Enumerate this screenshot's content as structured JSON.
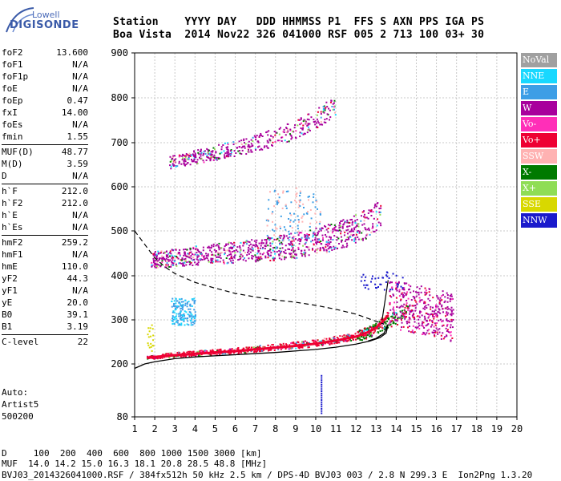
{
  "logo": {
    "line1": "Lowell",
    "line2": "DIGISONDE"
  },
  "header": {
    "line1": "Station    YYYY DAY   DDD HHMMSS P1  FFS S AXN PPS IGA PS",
    "line2": "Boa Vista  2014 Nov22 326 041000 RSF 005 2 713 100 03+ 30"
  },
  "params": {
    "groups": [
      [
        [
          "foF2",
          "13.600"
        ],
        [
          "foF1",
          "N/A"
        ],
        [
          "foF1p",
          "N/A"
        ],
        [
          "foE",
          "N/A"
        ],
        [
          "foEp",
          "0.47"
        ],
        [
          "fxI",
          "14.00"
        ],
        [
          "foEs",
          "N/A"
        ],
        [
          "fmin",
          "1.55"
        ]
      ],
      [
        [
          "MUF(D)",
          "48.77"
        ],
        [
          "M(D)",
          "3.59"
        ],
        [
          "D",
          "N/A"
        ]
      ],
      [
        [
          "h`F",
          "212.0"
        ],
        [
          "h`F2",
          "212.0"
        ],
        [
          "h`E",
          "N/A"
        ],
        [
          "h`Es",
          "N/A"
        ]
      ],
      [
        [
          "hmF2",
          "259.2"
        ],
        [
          "hmF1",
          "N/A"
        ],
        [
          "hmE",
          "110.0"
        ],
        [
          "yF2",
          "44.3"
        ],
        [
          "yF1",
          "N/A"
        ],
        [
          "yE",
          "20.0"
        ],
        [
          "B0",
          "39.1"
        ],
        [
          "B1",
          "3.19"
        ]
      ],
      [
        [
          "C-level",
          "22"
        ]
      ]
    ]
  },
  "auto": {
    "line1": "Auto:",
    "line2": "Artist5",
    "line3": "500200"
  },
  "legend": [
    {
      "label": "NoVal",
      "color": "#a0a0a0"
    },
    {
      "label": "NNE",
      "color": "#19d8ff"
    },
    {
      "label": "E",
      "color": "#3d9ee6"
    },
    {
      "label": "W",
      "color": "#a8009c"
    },
    {
      "label": "Vo-",
      "color": "#ff2fb8"
    },
    {
      "label": "Vo+",
      "color": "#ee0033"
    },
    {
      "label": "SSW",
      "color": "#ffb2b2"
    },
    {
      "label": "X-",
      "color": "#007a00"
    },
    {
      "label": "X+",
      "color": "#8fdd55"
    },
    {
      "label": "SSE",
      "color": "#d8d800"
    },
    {
      "label": "NNW",
      "color": "#1a1acc"
    }
  ],
  "bottom": {
    "line1": "D     100  200  400  600  800 1000 1500 3000 [km]",
    "line2": "MUF  14.0 14.2 15.0 16.3 18.1 20.8 28.5 48.8 [MHz]",
    "line3": "BVJ03_2014326041000.RSF / 384fx512h 50 kHz 2.5 km / DPS-4D BVJ03 003 / 2.8 N 299.3 E  Ion2Png 1.3.20"
  },
  "chart_data": {
    "type": "scatter",
    "xlabel": "",
    "ylabel": "",
    "xlim": [
      1,
      20
    ],
    "ylim": [
      80,
      900
    ],
    "x_ticks": [
      1,
      2,
      3,
      4,
      5,
      6,
      7,
      8,
      9,
      10,
      11,
      12,
      13,
      14,
      15,
      16,
      17,
      18,
      19,
      20
    ],
    "y_ticks": [
      80,
      200,
      300,
      400,
      500,
      600,
      700,
      800,
      900
    ],
    "grid": true,
    "traces": [
      {
        "name": "F2 O-trace",
        "color": "#ee0033",
        "x": [
          1.6,
          2,
          3,
          4,
          5,
          6,
          7,
          8,
          9,
          10,
          11,
          12,
          12.5,
          13,
          13.3,
          13.6
        ],
        "y": [
          214,
          216,
          220,
          223,
          226,
          229,
          233,
          237,
          241,
          246,
          253,
          262,
          270,
          282,
          295,
          310
        ]
      },
      {
        "name": "F2 X-trace",
        "color": "#007a00",
        "x": [
          12,
          12.5,
          13,
          13.5,
          14,
          14.3,
          14.6
        ],
        "y": [
          258,
          266,
          276,
          290,
          303,
          312,
          318
        ]
      },
      {
        "name": "2-hop F",
        "color": "#a8009c",
        "x": [
          1.8,
          2.5,
          4,
          6,
          8,
          9,
          10,
          11,
          12,
          12.6,
          13.2
        ],
        "y": [
          430,
          432,
          438,
          445,
          452,
          458,
          467,
          477,
          493,
          508,
          525
        ]
      },
      {
        "name": "3-hop F",
        "color": "#a8009c",
        "x": [
          2.7,
          3,
          4,
          5,
          6,
          7,
          8,
          9,
          10,
          11
        ],
        "y": [
          650,
          655,
          663,
          672,
          682,
          692,
          707,
          722,
          745,
          778
        ]
      }
    ],
    "profile": {
      "name": "electron density profile",
      "x": [
        1,
        1.5,
        2,
        3,
        4,
        6,
        8,
        10,
        11,
        12,
        12.7,
        13.2,
        13.5,
        13.6
      ],
      "y": [
        190,
        200,
        205,
        212,
        216,
        221,
        226,
        233,
        238,
        245,
        252,
        260,
        270,
        290
      ]
    },
    "extrapolation": {
      "name": "extrapolated profile",
      "x": [
        1,
        1.5,
        2,
        2.5,
        3,
        4,
        5,
        6,
        7,
        8,
        9,
        10,
        11,
        12,
        12.8,
        13.4
      ],
      "y": [
        500,
        470,
        440,
        420,
        405,
        385,
        372,
        360,
        352,
        345,
        340,
        333,
        324,
        313,
        300,
        290
      ]
    }
  }
}
